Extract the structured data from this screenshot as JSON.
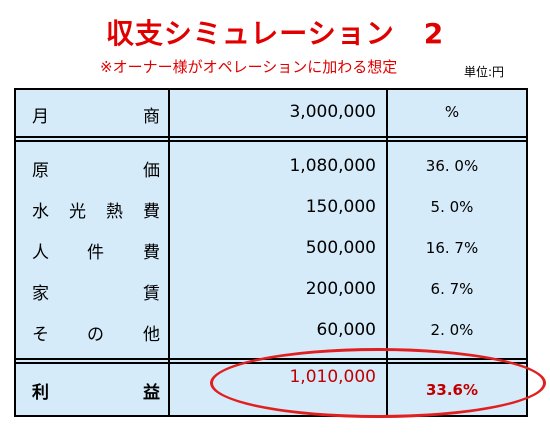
{
  "title": "収支シミュレーション　2",
  "subtitle": "※オーナー様がオペレーションに加わる想定",
  "unit": "単位:円",
  "header": {
    "label_chars": [
      "月",
      "商"
    ],
    "value": "3,000,000",
    "pct": "%"
  },
  "rows": [
    {
      "label_chars": [
        "原",
        "価"
      ],
      "value": "1,080,000",
      "pct": "36. 0%"
    },
    {
      "label_chars": [
        "水",
        "光",
        "熱",
        "費"
      ],
      "value": "150,000",
      "pct": "5. 0%"
    },
    {
      "label_chars": [
        "人",
        "件",
        "費"
      ],
      "value": "500,000",
      "pct": "16. 7%"
    },
    {
      "label_chars": [
        "家",
        "賃"
      ],
      "value": "200,000",
      "pct": "6. 7%"
    },
    {
      "label_chars": [
        "そ",
        "の",
        "他"
      ],
      "value": "60,000",
      "pct": "2. 0%"
    }
  ],
  "profit": {
    "label_chars": [
      "利",
      "益"
    ],
    "value": "1,010,000",
    "pct": "33.6%"
  },
  "colors": {
    "title": "#e00000",
    "table_bg": "#d6ebf9",
    "profit_text": "#c00000",
    "highlight_ellipse": "#e02020"
  }
}
